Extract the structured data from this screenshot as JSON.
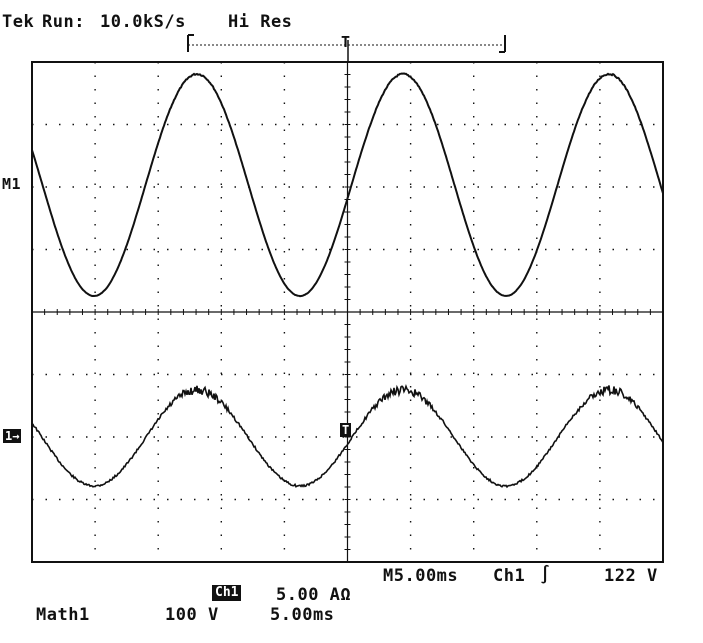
{
  "status": {
    "brand": "Tek",
    "run_state": "Run:",
    "sample_rate": "10.0kS/s",
    "acq_mode": "Hi Res"
  },
  "markers": {
    "trigger_pos": "T",
    "math_ref": "M1",
    "ch1_ref": "1→",
    "trigger_level": "T"
  },
  "readouts": {
    "timebase": "M5.00ms",
    "trigger_source": "Ch1",
    "trigger_slope": "∫",
    "trigger_level": "122 V",
    "ch1_badge": "Ch1",
    "ch1_scale": "5.00 AΩ",
    "math_label": "Math1",
    "math_scale": "100 V",
    "math_time": "5.00ms"
  },
  "colors": {
    "trace": "#111111",
    "grid": "#111111",
    "background": "#ffffff"
  }
}
